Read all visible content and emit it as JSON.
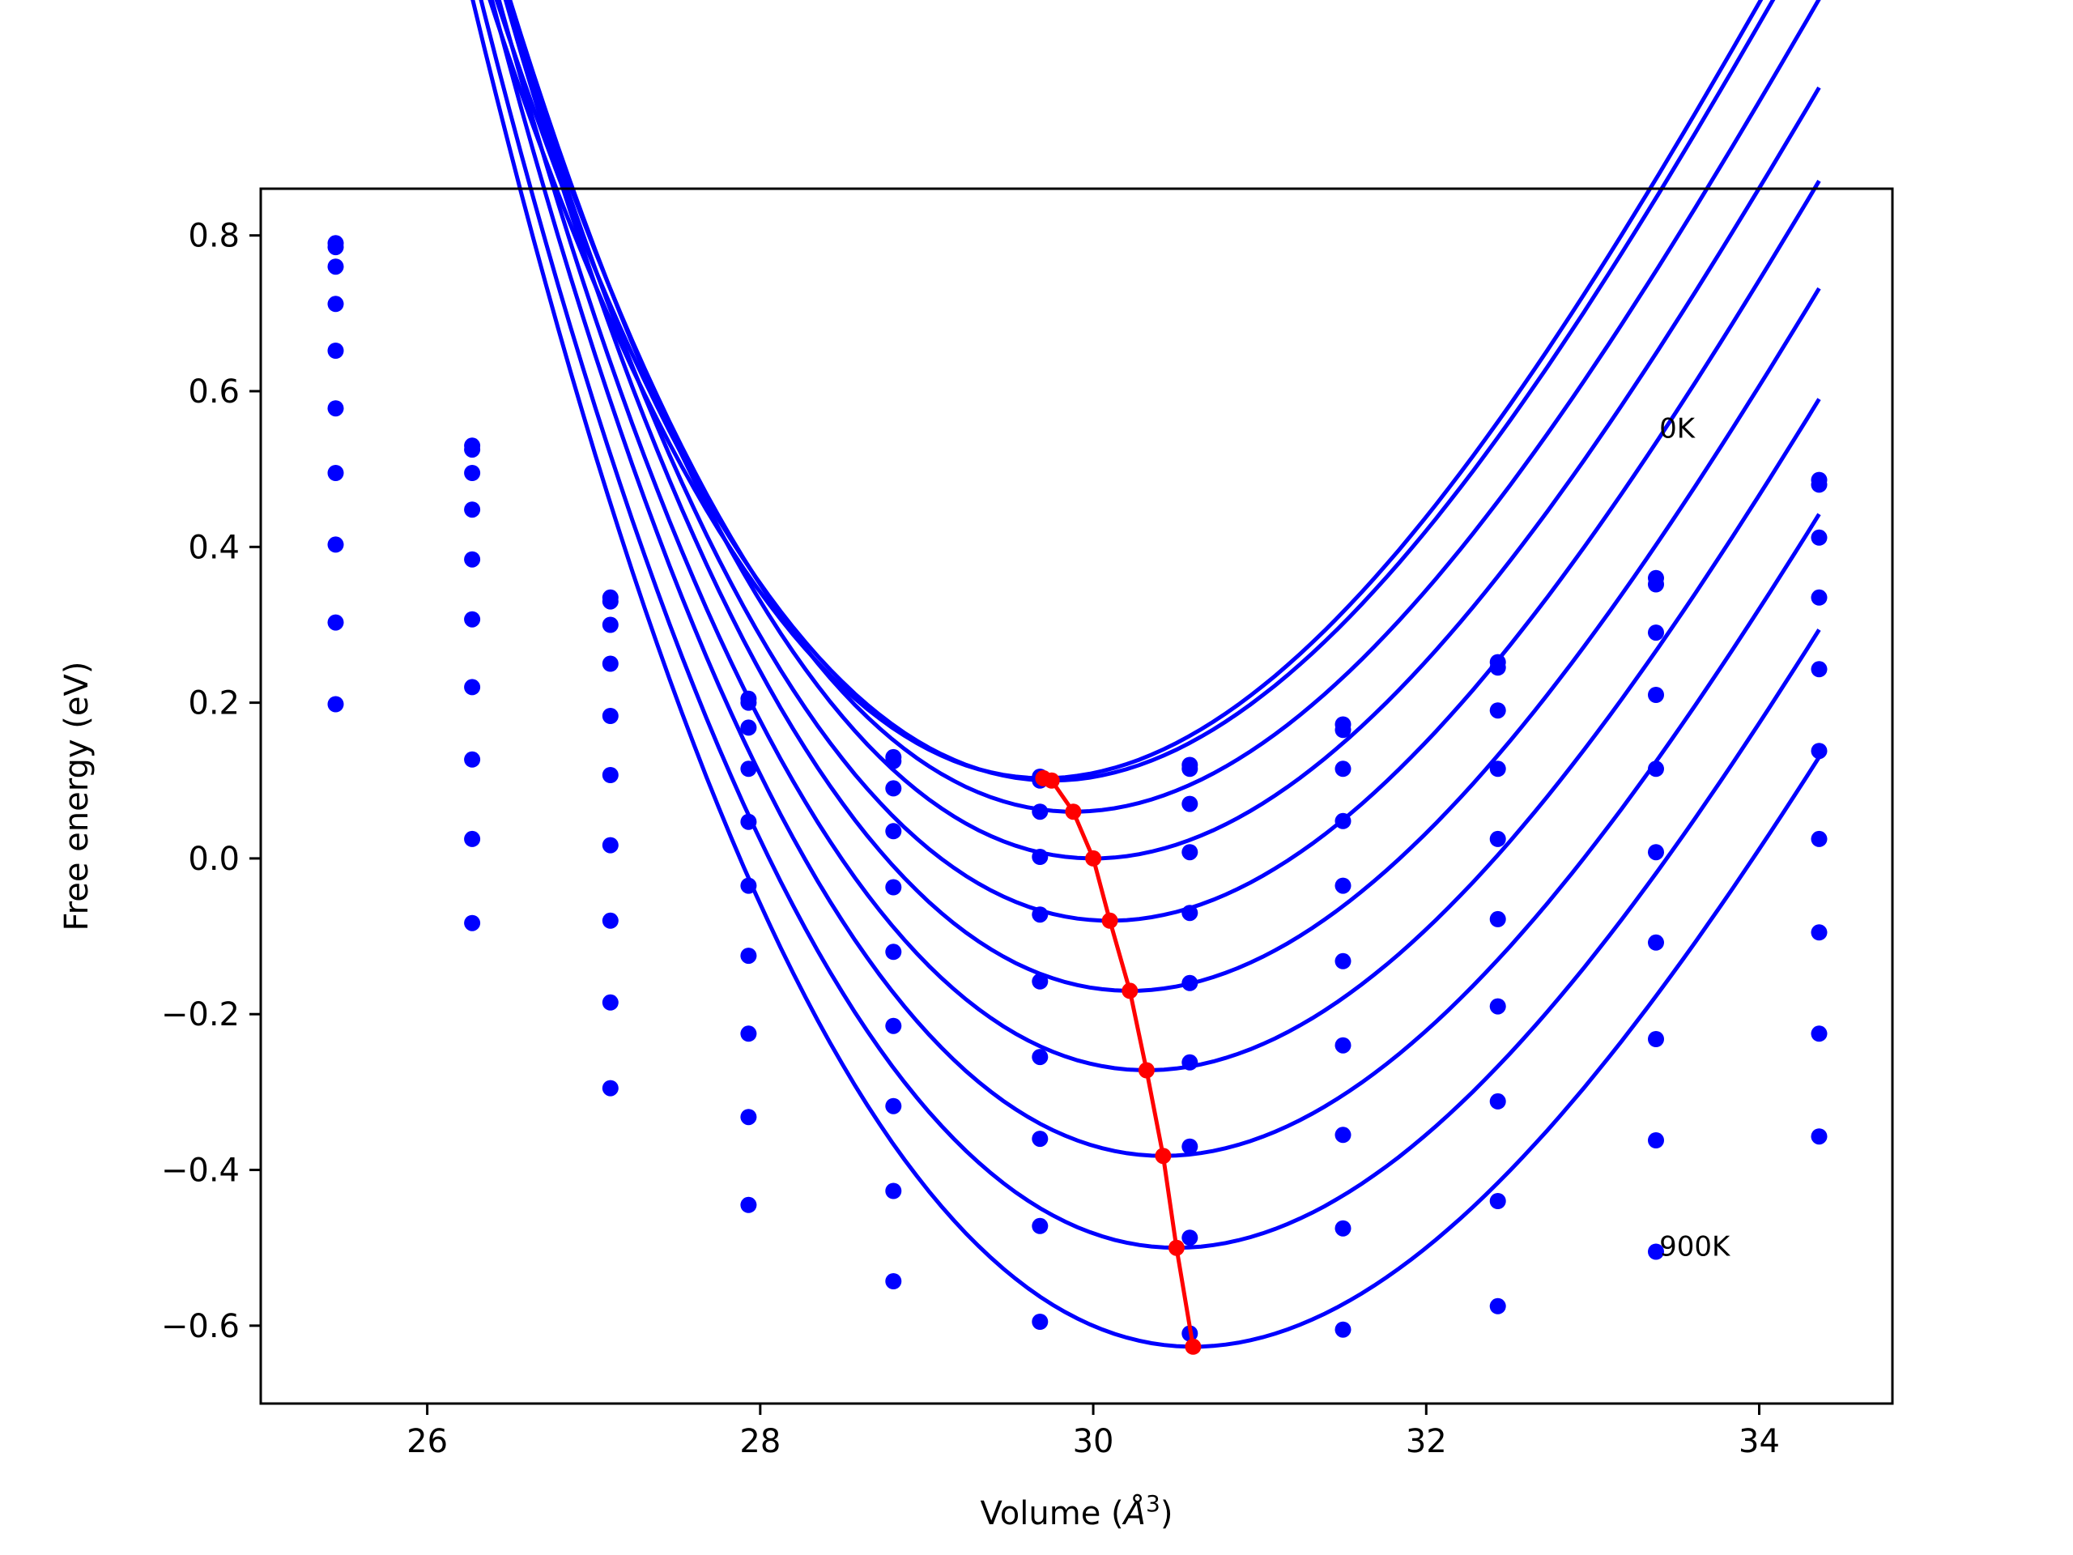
{
  "chart_data": {
    "type": "line",
    "title": "",
    "xlabel_parts": [
      "Volume (",
      "Å",
      "3",
      ")"
    ],
    "ylabel": "Free energy (eV)",
    "xlim": [
      25.0,
      34.8
    ],
    "ylim": [
      -0.7,
      0.86
    ],
    "xticks": [
      26,
      28,
      30,
      32,
      34
    ],
    "yticks": [
      -0.6,
      -0.4,
      -0.2,
      0.0,
      0.2,
      0.4,
      0.6,
      0.8
    ],
    "grid": false,
    "legend": "none",
    "colors": {
      "curves": "#0000ff",
      "minimum_line": "#ff0000",
      "text": "#000000"
    },
    "annotations": [
      {
        "text": "0K",
        "x": 33.4,
        "y": 0.54
      },
      {
        "text": "900K",
        "x": 33.4,
        "y": -0.51
      }
    ],
    "volumes": [
      25.45,
      26.27,
      27.1,
      27.93,
      28.8,
      29.68,
      30.58,
      31.5,
      32.43,
      33.38,
      34.36
    ],
    "series": [
      {
        "points": [
          0.79,
          0.53,
          0.335,
          0.205,
          0.13,
          0.105,
          0.12,
          0.172,
          0.252,
          0.36,
          0.486
        ],
        "fit": {
          "v0": 29.7,
          "e0": 0.103,
          "b2": 0.0745,
          "b3": -0.0048
        }
      },
      {
        "points": [
          0.785,
          0.525,
          0.33,
          0.2,
          0.125,
          0.1,
          0.115,
          0.165,
          0.245,
          0.352,
          0.48
        ],
        "fit": {
          "v0": 29.75,
          "e0": 0.1,
          "b2": 0.0742,
          "b3": -0.0048
        }
      },
      {
        "points": [
          0.76,
          0.495,
          0.3,
          0.168,
          0.09,
          0.06,
          0.07,
          0.115,
          0.19,
          0.29,
          0.412
        ],
        "fit": {
          "v0": 29.88,
          "e0": 0.06,
          "b2": 0.0735,
          "b3": -0.0048
        }
      },
      {
        "points": [
          0.712,
          0.448,
          0.25,
          0.115,
          0.035,
          0.002,
          0.008,
          0.048,
          0.115,
          0.21,
          0.335
        ],
        "fit": {
          "v0": 30.0,
          "e0": 0.0,
          "b2": 0.073,
          "b3": -0.0048
        }
      },
      {
        "points": [
          0.652,
          0.384,
          0.183,
          0.047,
          -0.037,
          -0.072,
          -0.07,
          -0.035,
          0.025,
          0.115,
          0.243
        ],
        "fit": {
          "v0": 30.1,
          "e0": -0.08,
          "b2": 0.0728,
          "b3": -0.0048
        }
      },
      {
        "points": [
          0.578,
          0.307,
          0.107,
          -0.035,
          -0.12,
          -0.158,
          -0.16,
          -0.132,
          -0.078,
          0.008,
          0.138
        ],
        "fit": {
          "v0": 30.22,
          "e0": -0.17,
          "b2": 0.0725,
          "b3": -0.0048
        }
      },
      {
        "points": [
          0.495,
          0.22,
          0.017,
          -0.125,
          -0.215,
          -0.255,
          -0.262,
          -0.24,
          -0.19,
          -0.108,
          0.025
        ],
        "fit": {
          "v0": 30.32,
          "e0": -0.272,
          "b2": 0.0722,
          "b3": -0.0048
        }
      },
      {
        "points": [
          0.403,
          0.127,
          -0.08,
          -0.225,
          -0.318,
          -0.36,
          -0.37,
          -0.355,
          -0.312,
          -0.232,
          -0.095
        ],
        "fit": {
          "v0": 30.42,
          "e0": -0.382,
          "b2": 0.072,
          "b3": -0.0048
        }
      },
      {
        "points": [
          0.303,
          0.025,
          -0.185,
          -0.332,
          -0.427,
          -0.472,
          -0.487,
          -0.475,
          -0.44,
          -0.362,
          -0.225
        ],
        "fit": {
          "v0": 30.5,
          "e0": -0.5,
          "b2": 0.0718,
          "b3": -0.0048
        }
      },
      {
        "points": [
          0.198,
          -0.083,
          -0.295,
          -0.445,
          -0.543,
          -0.595,
          -0.61,
          -0.605,
          -0.575,
          -0.505,
          -0.357
        ],
        "fit": {
          "v0": 30.6,
          "e0": -0.627,
          "b2": 0.0716,
          "b3": -0.0048
        }
      }
    ],
    "minimum_line": {
      "x": [
        29.7,
        29.75,
        29.88,
        30.0,
        30.1,
        30.22,
        30.32,
        30.42,
        30.5,
        30.6
      ],
      "y": [
        0.103,
        0.1,
        0.06,
        0.0,
        -0.08,
        -0.17,
        -0.272,
        -0.382,
        -0.5,
        -0.627
      ]
    }
  }
}
